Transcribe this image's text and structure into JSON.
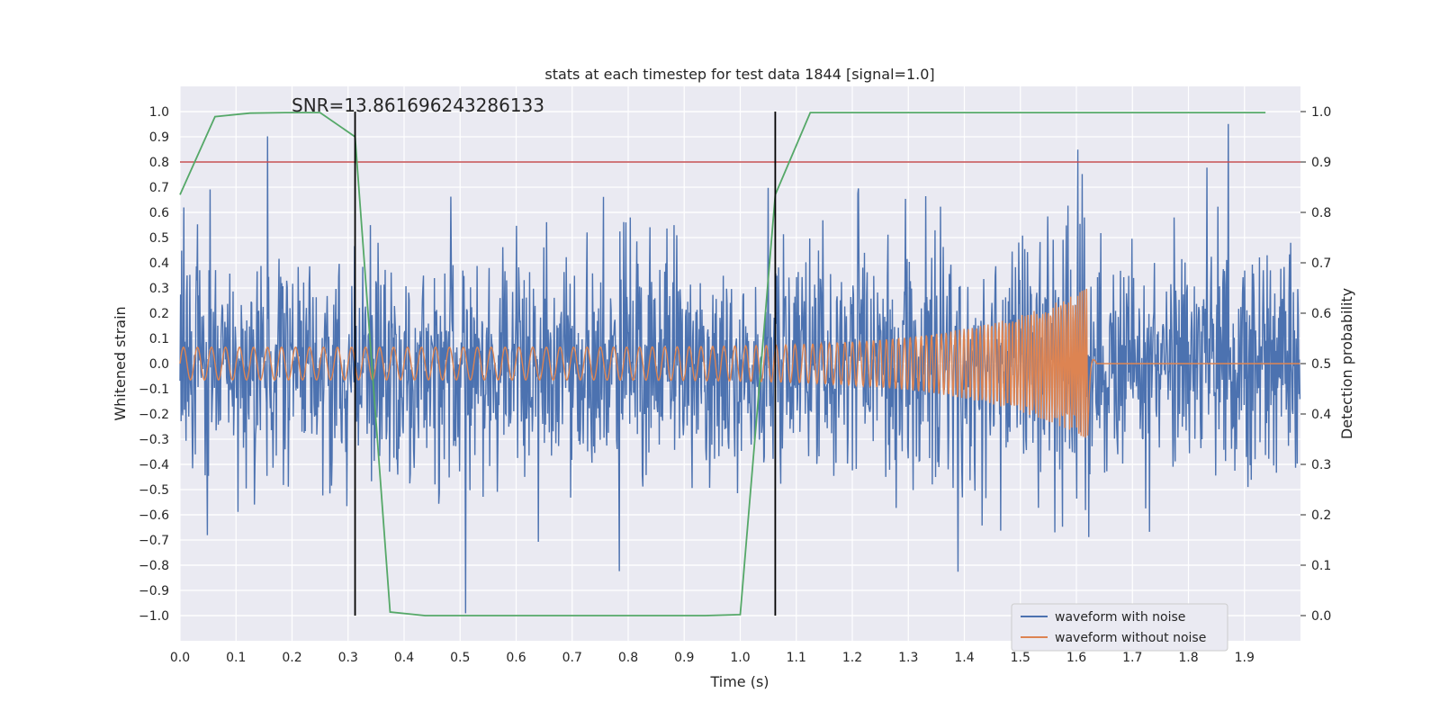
{
  "chart_data": {
    "type": "line",
    "title": "stats at each timestep for test data 1844 [signal=1.0]",
    "xlabel": "Time (s)",
    "ylabel": "Whitened strain",
    "y2label": "Detection probability",
    "xlim": [
      0.0,
      2.0
    ],
    "ylim": [
      -1.1,
      1.1
    ],
    "y2lim": [
      -0.05,
      1.05
    ],
    "x_ticks": [
      "0.0",
      "0.1",
      "0.2",
      "0.3",
      "0.4",
      "0.5",
      "0.6",
      "0.7",
      "0.8",
      "0.9",
      "1.0",
      "1.1",
      "1.2",
      "1.3",
      "1.4",
      "1.5",
      "1.6",
      "1.7",
      "1.8",
      "1.9"
    ],
    "y_ticks": [
      "1.0",
      "0.9",
      "0.8",
      "0.7",
      "0.6",
      "0.5",
      "0.4",
      "0.3",
      "0.2",
      "0.1",
      "0.0",
      "-0.1",
      "-0.2",
      "-0.3",
      "-0.4",
      "-0.5",
      "-0.6",
      "-0.7",
      "-0.8",
      "-0.9",
      "-1.0"
    ],
    "y2_ticks": [
      "1.0",
      "0.9",
      "0.8",
      "0.7",
      "0.6",
      "0.5",
      "0.4",
      "0.3",
      "0.2",
      "0.1",
      "0.0"
    ],
    "annotation": "SNR=13.861696243286133",
    "legend": {
      "position": "lower-right",
      "entries": [
        {
          "label": "waveform with noise",
          "color": "#4c72b0"
        },
        {
          "label": "waveform without noise",
          "color": "#dd8452"
        }
      ]
    },
    "threshold_line": {
      "y2": 0.9,
      "color": "#c44e52"
    },
    "vertical_lines": [
      {
        "x": 0.3125,
        "color": "#000000"
      },
      {
        "x": 1.0625,
        "color": "#000000"
      }
    ],
    "series": [
      {
        "name": "waveform with noise",
        "color": "#4c72b0",
        "kind": "noisy-strain",
        "duration": 2.0,
        "std": 0.22,
        "samples": 2048
      },
      {
        "name": "waveform without noise",
        "color": "#dd8452",
        "kind": "chirp",
        "start_amplitude": 0.065,
        "peak_amplitude": 0.3,
        "merger_time": 1.62,
        "start_frequency": 40,
        "peak_frequency": 260
      },
      {
        "name": "detection probability",
        "color": "#55a868",
        "axis": "y2",
        "x": [
          0.0,
          0.0625,
          0.125,
          0.1875,
          0.25,
          0.3125,
          0.375,
          0.4375,
          0.5,
          0.5625,
          0.625,
          0.6875,
          0.75,
          0.8125,
          0.875,
          0.9375,
          1.0,
          1.0625,
          1.125,
          1.1875,
          1.25,
          1.3125,
          1.375,
          1.4375,
          1.5,
          1.5625,
          1.625,
          1.6875,
          1.75,
          1.8125,
          1.875,
          1.9375
        ],
        "values": [
          0.835,
          0.99,
          0.997,
          0.998,
          0.998,
          0.95,
          0.007,
          0.0,
          0.0,
          0.0,
          0.0,
          0.0,
          0.0,
          0.0,
          0.0,
          0.0,
          0.002,
          0.835,
          0.998,
          0.998,
          0.998,
          0.998,
          0.998,
          0.998,
          0.998,
          0.998,
          0.998,
          0.998,
          0.998,
          0.998,
          0.998,
          0.998
        ]
      }
    ]
  }
}
